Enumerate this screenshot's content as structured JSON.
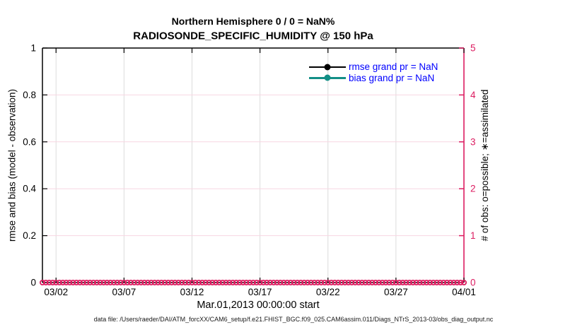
{
  "caption": {
    "text": "data file: /Users/raeder/DAI/ATM_forcXX/CAM6_setup/f.e21.FHIST_BGC.f09_025.CAM6assim.011/Diags_NTrS_2013-03/obs_diag_output.nc"
  },
  "chart_data": {
    "type": "line",
    "title": "Northern Hemisphere 0 / 0 = NaN%",
    "subtitle": "RADIOSONDE_SPECIFIC_HUMIDITY @ 150 hPa",
    "xlabel": "Mar.01,2013 00:00:00 start",
    "ylabel_left": "rmse and bias (model - observation)",
    "ylabel_right": "# of obs: o=possible; ∗=assimilated",
    "x_tick_labels": [
      "03/02",
      "03/07",
      "03/12",
      "03/17",
      "03/22",
      "03/27",
      "04/01"
    ],
    "x_tick_days": [
      1,
      6,
      11,
      16,
      21,
      26,
      31
    ],
    "x_range_days": [
      0,
      31
    ],
    "y_left_tick_labels": [
      "0",
      "0.2",
      "0.4",
      "0.6",
      "0.8",
      "1"
    ],
    "y_left_ticks": [
      0,
      0.2,
      0.4,
      0.6,
      0.8,
      1
    ],
    "y_left_range": [
      0,
      1
    ],
    "y_right_tick_labels": [
      "0",
      "1",
      "2",
      "3",
      "4",
      "5"
    ],
    "y_right_ticks": [
      0,
      1,
      2,
      3,
      4,
      5
    ],
    "y_right_range": [
      0,
      5
    ],
    "grid": true,
    "legend_position": "top-right-inside",
    "series": [
      {
        "name": "rmse grand pr = NaN",
        "color": "#000000",
        "values": []
      },
      {
        "name": "bias grand pr = NaN",
        "color": "#128f86",
        "values": []
      }
    ],
    "obs_markers": {
      "meaning": "o=possible observation count",
      "marker": "o",
      "value": 0,
      "start_day": 0,
      "end_day": 31,
      "interval_days": 0.25,
      "color": "#dc1c60"
    },
    "colors": {
      "axis_left": "#000000",
      "axis_right": "#dc1c60",
      "grid_x": "#dcdcdc",
      "grid_y": "#f7d6e2",
      "legend_text": "#0000ff",
      "title": "#000000"
    }
  }
}
